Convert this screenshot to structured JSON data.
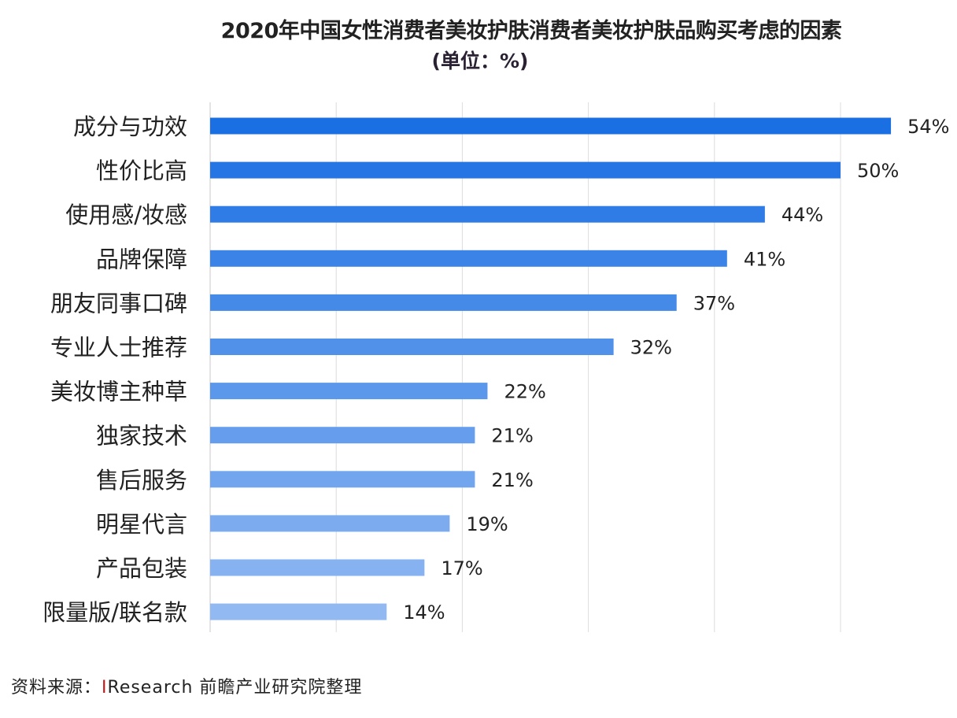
{
  "chart_data": {
    "type": "bar",
    "orientation": "horizontal",
    "title": "2020年中国女性消费者美妆护肤消费者美妆护肤品购买考虑的因素",
    "subtitle": "(单位：%)",
    "categories": [
      "成分与功效",
      "性价比高",
      "使用感/妆感",
      "品牌保障",
      "朋友同事口碑",
      "专业人士推荐",
      "美妆博主种草",
      "独家技术",
      "售后服务",
      "明星代言",
      "产品包装",
      "限量版/联名款"
    ],
    "values": [
      54,
      50,
      44,
      41,
      37,
      32,
      22,
      21,
      21,
      19,
      17,
      14
    ],
    "data_labels": [
      "54%",
      "50%",
      "44%",
      "41%",
      "37%",
      "32%",
      "22%",
      "21%",
      "21%",
      "19%",
      "17%",
      "14%"
    ],
    "xlim": [
      0,
      60
    ],
    "gridlines": [
      0,
      10,
      20,
      30,
      40,
      50
    ],
    "grid": true,
    "legend": "none",
    "colors": {
      "start": "#1a6fe3",
      "end": "#92b9f2"
    }
  },
  "source": {
    "prefix": "资料来源：",
    "marker": "I",
    "text": "Research 前瞻产业研究院整理"
  }
}
